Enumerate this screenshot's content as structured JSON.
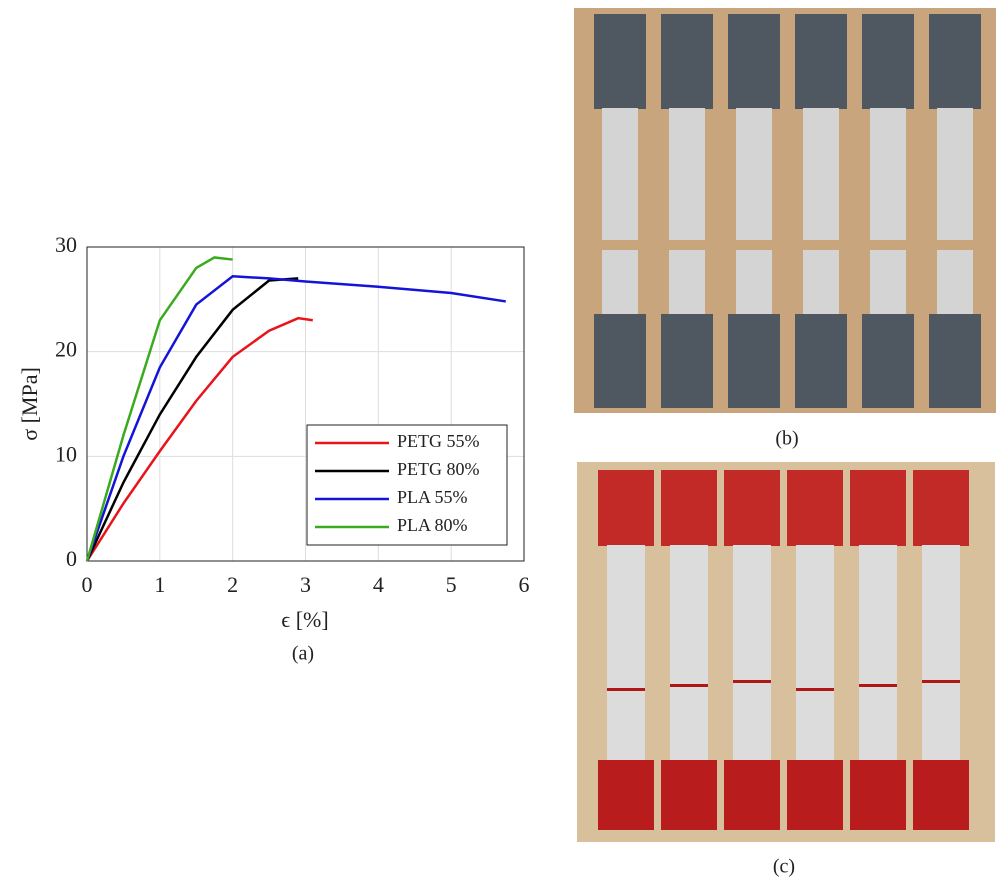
{
  "chart_data": {
    "type": "line",
    "xlabel": "ϵ [%]",
    "ylabel": "σ [MPa]",
    "caption": "(a)",
    "xlim": [
      0,
      6
    ],
    "xticks": [
      0,
      1,
      2,
      3,
      4,
      5,
      6
    ],
    "ylim": [
      0,
      30
    ],
    "yticks": [
      0,
      10,
      20,
      30
    ],
    "grid": true,
    "legend": "lower right",
    "series": [
      {
        "name": "PETG 55%",
        "color": "#e8141c",
        "x": [
          0,
          0.5,
          1,
          1.5,
          2,
          2.5,
          2.9,
          3.1
        ],
        "values": [
          0,
          5.5,
          10.5,
          15.3,
          19.5,
          22,
          23.2,
          23
        ]
      },
      {
        "name": "PETG 80%",
        "color": "#000000",
        "x": [
          0,
          0.5,
          1,
          1.5,
          2,
          2.5,
          2.9
        ],
        "values": [
          0,
          7.5,
          14,
          19.5,
          24,
          26.8,
          27
        ]
      },
      {
        "name": "PLA 55%",
        "color": "#1414d8",
        "x": [
          0,
          0.5,
          1,
          1.5,
          2,
          2.5,
          3,
          4,
          5,
          5.75
        ],
        "values": [
          0,
          10,
          18.5,
          24.5,
          27.2,
          27,
          26.7,
          26.2,
          25.6,
          24.8
        ]
      },
      {
        "name": "PLA 80%",
        "color": "#3aab1e",
        "x": [
          0,
          0.5,
          1,
          1.5,
          1.75,
          2
        ],
        "values": [
          0,
          12,
          23,
          28,
          29,
          28.8
        ]
      }
    ]
  },
  "panels": [
    {
      "caption": "(b)"
    },
    {
      "caption": "(c)"
    }
  ]
}
